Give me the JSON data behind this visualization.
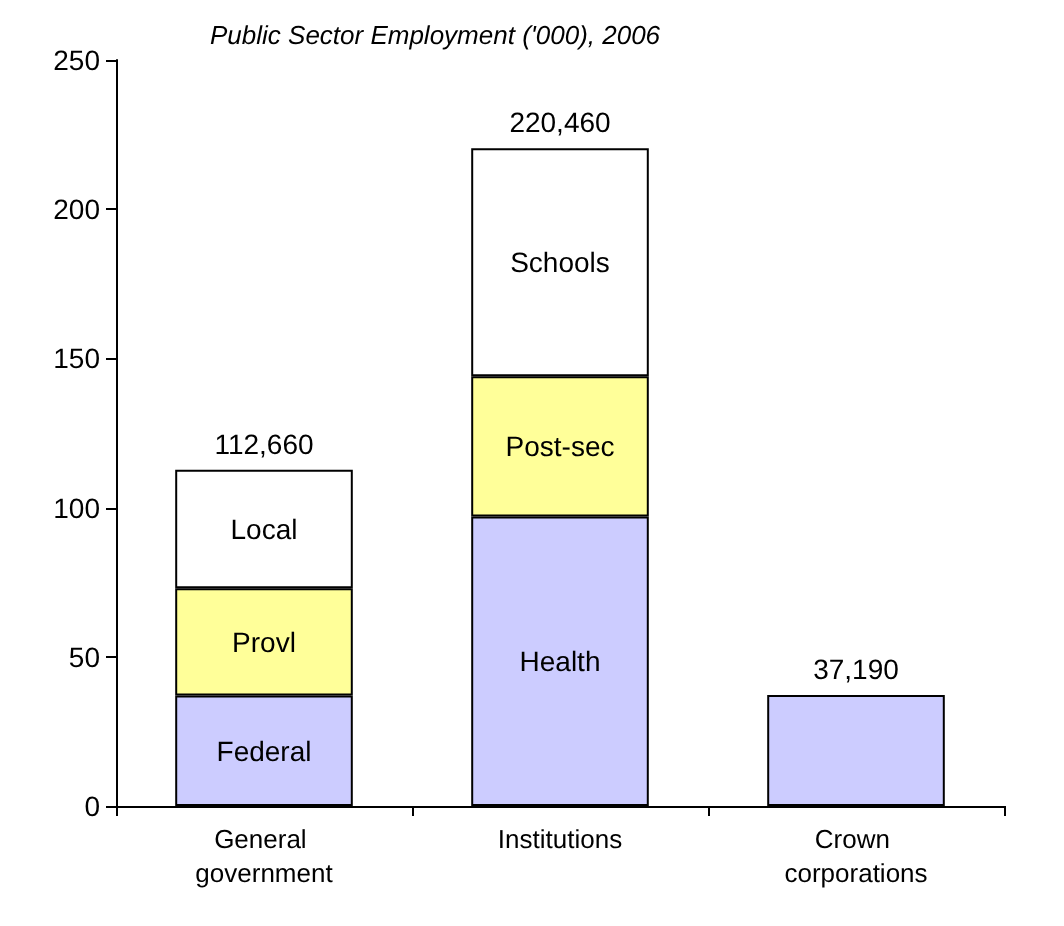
{
  "chart_data": {
    "type": "bar",
    "title": "Public Sector Employment ('000), 2006",
    "categories": [
      "General government",
      "Institutions",
      "Crown corporations"
    ],
    "stacked": true,
    "ylim": [
      0,
      250
    ],
    "yticks": [
      0,
      50,
      100,
      150,
      200,
      250
    ],
    "grid": false,
    "legend": false,
    "series": [
      {
        "name": "Federal",
        "color": "#ccccff",
        "values": [
          37,
          null,
          null
        ]
      },
      {
        "name": "Provl",
        "color": "#ffff99",
        "values": [
          36,
          null,
          null
        ]
      },
      {
        "name": "Local",
        "color": "#ffffff",
        "values": [
          39.66,
          null,
          null
        ]
      },
      {
        "name": "Health",
        "color": "#ccccff",
        "values": [
          null,
          97,
          null
        ]
      },
      {
        "name": "Post-sec",
        "color": "#ffff99",
        "values": [
          null,
          47,
          null
        ]
      },
      {
        "name": "Schools",
        "color": "#ffffff",
        "values": [
          null,
          76.46,
          null
        ]
      },
      {
        "color": "#ccccff",
        "values": [
          null,
          null,
          37.19
        ]
      }
    ],
    "totals": [
      "112,660",
      "220,460",
      "37,190"
    ]
  }
}
